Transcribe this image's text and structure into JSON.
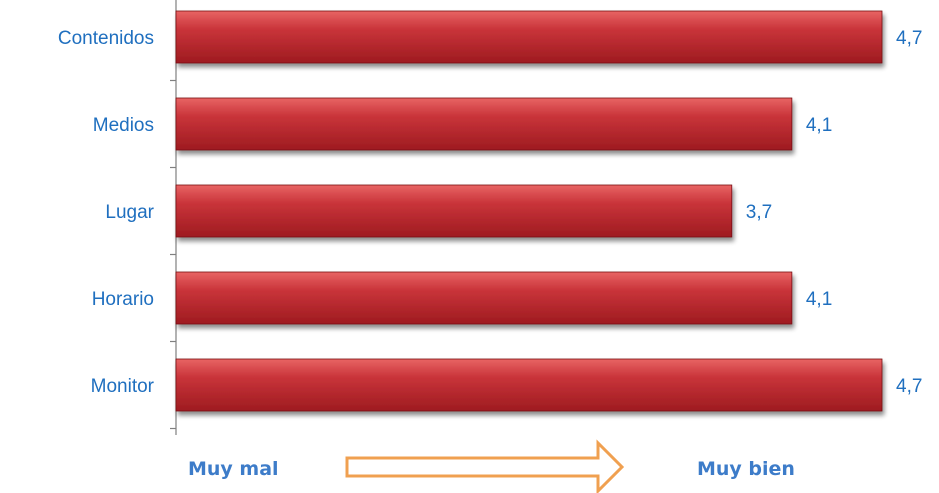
{
  "chart_data": {
    "type": "bar",
    "orientation": "horizontal",
    "categories": [
      "Contenidos",
      "Medios",
      "Lugar",
      "Horario",
      "Monitor"
    ],
    "values": [
      "4,7",
      "4,1",
      "3,7",
      "4,1",
      "4,7"
    ],
    "numeric_values": [
      4.7,
      4.1,
      3.7,
      4.1,
      4.7
    ],
    "xlim": [
      0,
      4.7
    ],
    "grid": false,
    "legend": "none",
    "scale_labels": {
      "low": "Muy mal",
      "high": "Muy bien"
    }
  },
  "colors": {
    "bar": "#C0272D",
    "bar_light": "#E05A5A",
    "bar_dark": "#8E1519",
    "label_text": "#1F6FBF",
    "scale_text": "#3D7CC9",
    "arrow": "#F0A050",
    "axis": "#808080"
  }
}
